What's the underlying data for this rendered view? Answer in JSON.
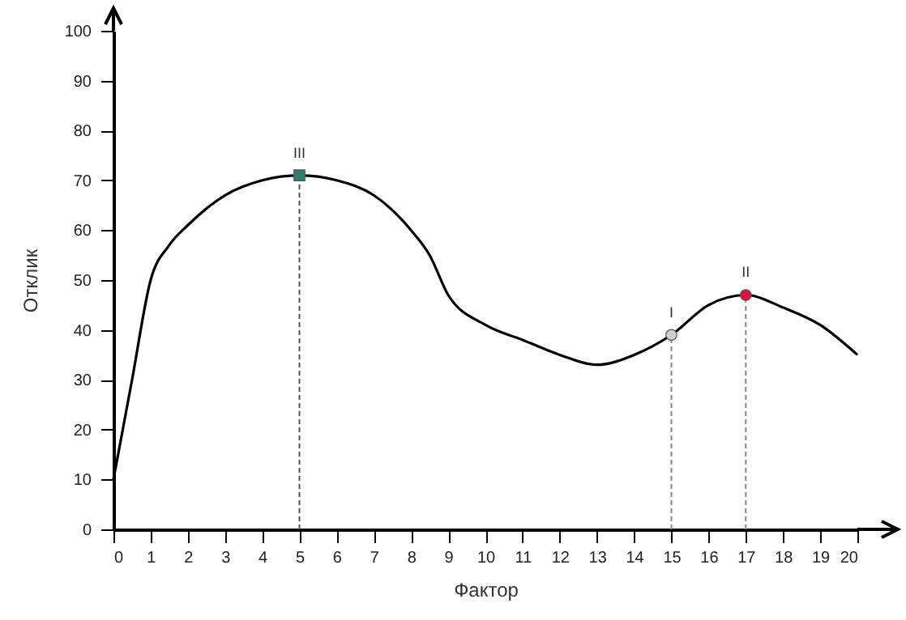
{
  "chart_data": {
    "type": "line",
    "xlabel": "Фактор",
    "ylabel": "Отклик",
    "xlim": [
      0,
      20
    ],
    "ylim": [
      0,
      100
    ],
    "xticks": [
      0,
      1,
      2,
      3,
      4,
      5,
      6,
      7,
      8,
      9,
      10,
      11,
      12,
      13,
      14,
      15,
      16,
      17,
      18,
      19,
      20
    ],
    "yticks": [
      0,
      10,
      20,
      30,
      40,
      50,
      60,
      70,
      80,
      90,
      100
    ],
    "grid": false,
    "series": [
      {
        "color": "#000000",
        "marker": "none",
        "line_style": "solid",
        "x": [
          0,
          0.5,
          1,
          1.5,
          2,
          3,
          4,
          5,
          6,
          7,
          8,
          8.5,
          9,
          10,
          11,
          12,
          13,
          14,
          15,
          16,
          17,
          18,
          19,
          20
        ],
        "values": [
          10,
          30,
          50,
          57,
          61,
          67,
          70,
          71,
          70,
          67,
          60,
          55,
          47,
          41,
          38,
          35,
          33,
          35,
          39,
          45,
          47,
          44.5,
          41,
          35
        ]
      },
      {
        "type": "scatter",
        "color": "#2f7f6f",
        "marker": "square",
        "x": [
          5
        ],
        "values": [
          71
        ]
      },
      {
        "type": "scatter",
        "color": "#d0d0d0",
        "marker": "circle",
        "x": [
          15
        ],
        "values": [
          39
        ]
      },
      {
        "type": "scatter",
        "color": "#e0103a",
        "marker": "circle",
        "x": [
          17
        ],
        "values": [
          47
        ]
      }
    ],
    "ref_lines": [
      {
        "axis": "x",
        "value": 5,
        "line_style": "dashed",
        "color": "#555555"
      },
      {
        "axis": "x",
        "value": 15,
        "line_style": "dashed",
        "color": "#888888"
      },
      {
        "axis": "x",
        "value": 17,
        "line_style": "dashed",
        "color": "#888888"
      }
    ],
    "annotations": [
      {
        "text": "III",
        "x": 5,
        "y": 71
      },
      {
        "text": "I",
        "x": 15,
        "y": 39
      },
      {
        "text": "II",
        "x": 17,
        "y": 47
      }
    ]
  }
}
